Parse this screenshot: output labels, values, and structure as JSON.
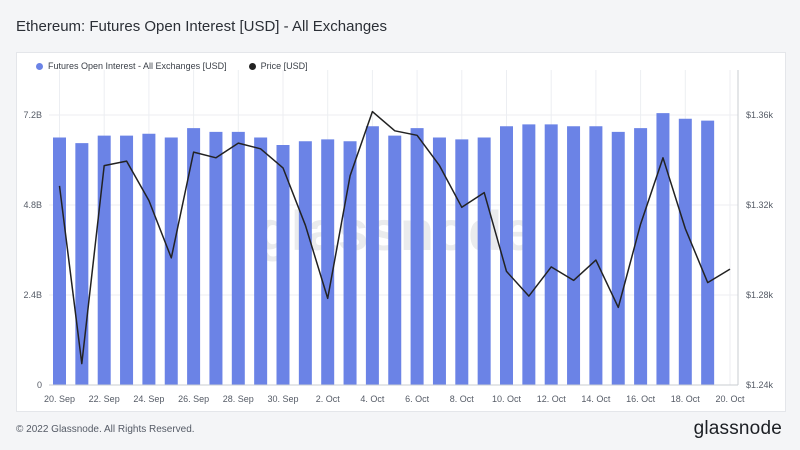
{
  "title": "Ethereum: Futures Open Interest [USD] - All Exchanges",
  "footer": "© 2022 Glassnode. All Rights Reserved.",
  "brand": "glassnode",
  "watermark": "glassnode",
  "colors": {
    "bar": "#6b83e6",
    "line": "#222222",
    "background": "#ffffff"
  },
  "chart_data": {
    "type": "bar",
    "title": "Ethereum: Futures Open Interest [USD] - All Exchanges",
    "legend": [
      "Futures Open Interest - All Exchanges [USD]",
      "Price [USD]"
    ],
    "legend_position": "top-left",
    "grid": true,
    "x_tick_labels": [
      "20. Sep",
      "22. Sep",
      "24. Sep",
      "26. Sep",
      "28. Sep",
      "30. Sep",
      "2. Oct",
      "4. Oct",
      "6. Oct",
      "8. Oct",
      "10. Oct",
      "12. Oct",
      "14. Oct",
      "16. Oct",
      "18. Oct",
      "20. Oct"
    ],
    "y_left_ticks": [
      "0",
      "2.4B",
      "4.8B",
      "7.2B"
    ],
    "y_left_range": [
      0,
      7.2
    ],
    "y_right_ticks": [
      "$1.24k",
      "$1.28k",
      "$1.32k",
      "$1.36k"
    ],
    "y_right_range": [
      1.24,
      1.36
    ],
    "series": [
      {
        "name": "Futures Open Interest - All Exchanges [USD]",
        "type": "bar",
        "unit": "B USD",
        "values": [
          6.6,
          6.45,
          6.65,
          6.65,
          6.7,
          6.6,
          6.85,
          6.75,
          6.75,
          6.6,
          6.4,
          6.5,
          6.55,
          6.5,
          6.9,
          6.65,
          6.85,
          6.6,
          6.55,
          6.6,
          6.9,
          6.95,
          6.95,
          6.9,
          6.9,
          6.75,
          6.85,
          7.25,
          7.1,
          7.05
        ]
      },
      {
        "name": "Price [USD]",
        "type": "line",
        "unit": "k USD",
        "values": [
          1.3285,
          1.2495,
          1.3375,
          1.3395,
          1.322,
          1.2965,
          1.3435,
          1.341,
          1.3475,
          1.345,
          1.3365,
          1.311,
          1.2785,
          1.333,
          1.3615,
          1.353,
          1.351,
          1.3375,
          1.319,
          1.3255,
          1.2905,
          1.2795,
          1.2925,
          1.2865,
          1.2955,
          1.2745,
          1.3115,
          1.341,
          1.3095,
          1.2855,
          1.2915
        ]
      }
    ]
  }
}
